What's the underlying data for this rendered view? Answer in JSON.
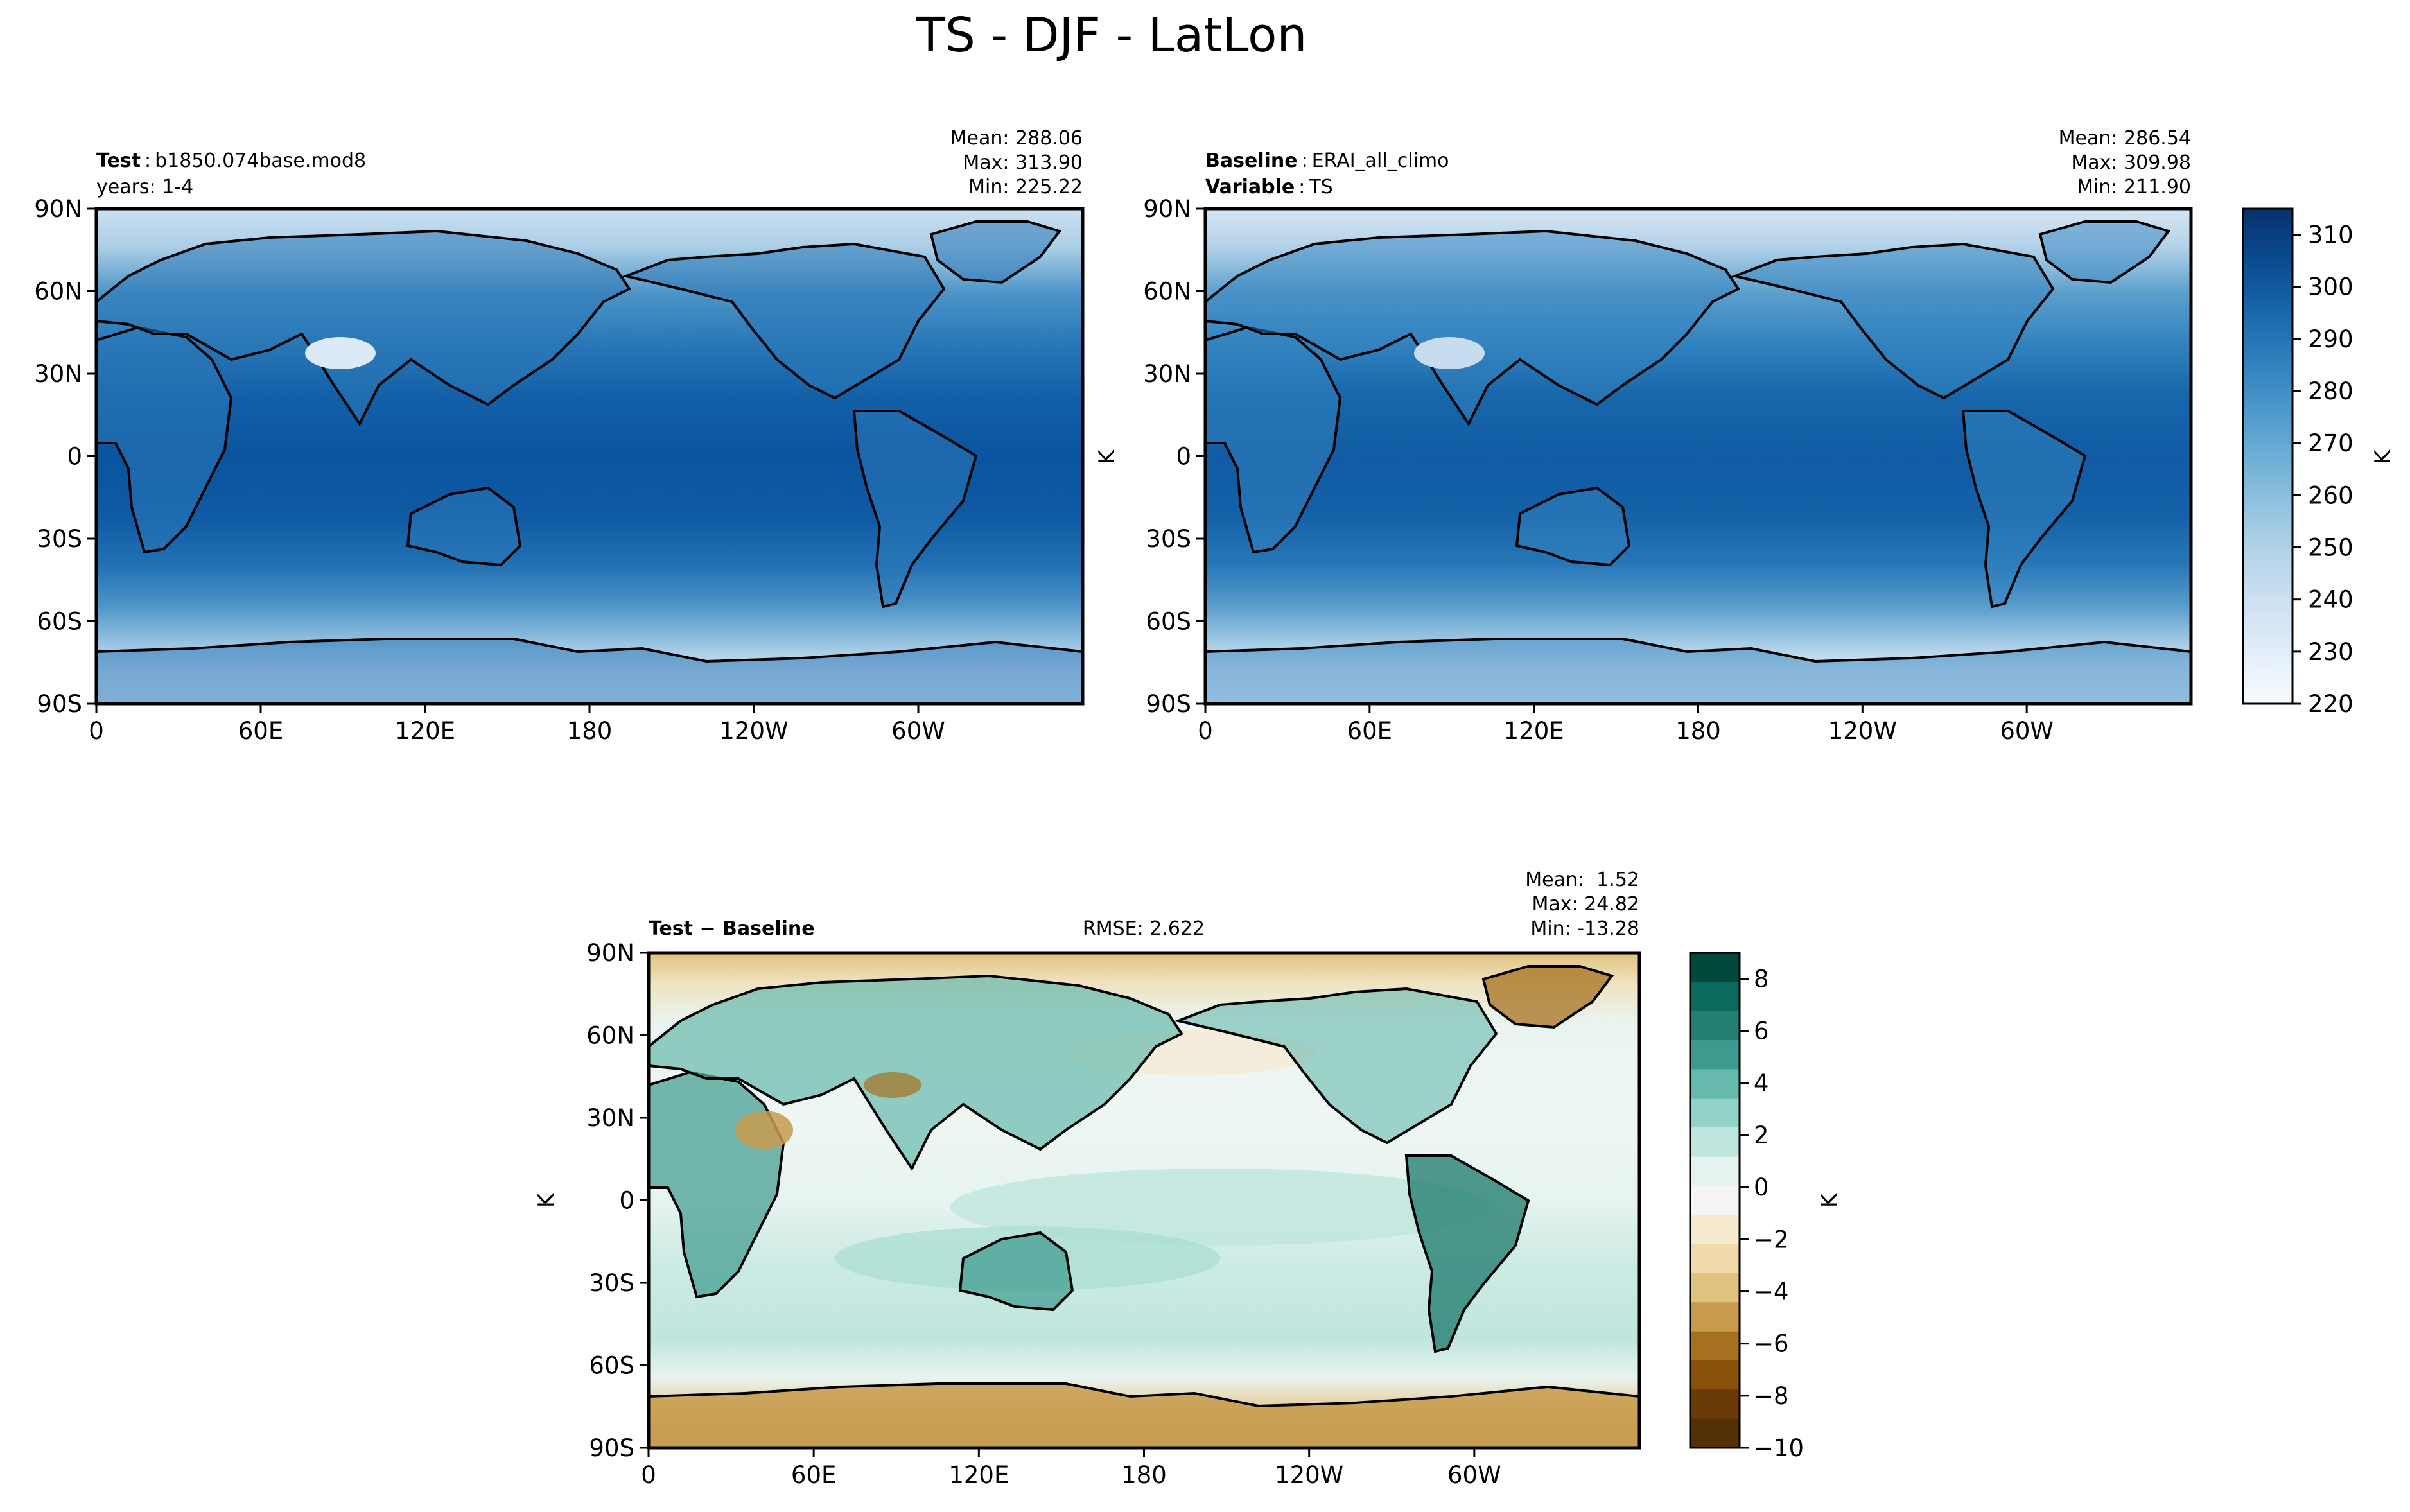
{
  "figure": {
    "title": "TS - DJF - LatLon"
  },
  "chart_data": [
    {
      "type": "heatmap",
      "panel": "test",
      "label_left_bold": "Test",
      "label_left_value": "b1850.074base.mod8",
      "label_left_line2": "years: 1-4",
      "stats": [
        "Mean: 288.06",
        "Max: 313.90",
        "Min: 225.22"
      ],
      "stats_values": {
        "mean": 288.06,
        "max": 313.9,
        "min": 225.22
      },
      "x_ticks": [
        "0",
        "60E",
        "120E",
        "180",
        "120W",
        "60W"
      ],
      "x_tick_values": [
        0,
        60,
        120,
        180,
        240,
        300
      ],
      "y_ticks": [
        "90N",
        "60N",
        "30N",
        "0",
        "30S",
        "60S",
        "90S"
      ],
      "y_tick_values": [
        90,
        60,
        30,
        0,
        -30,
        -60,
        -90
      ],
      "xlim": [
        0,
        360
      ],
      "ylim": [
        -90,
        90
      ],
      "colormap": "Blues",
      "grid": false
    },
    {
      "type": "heatmap",
      "panel": "baseline",
      "label_left_bold": "Baseline",
      "label_left_value": "ERAI_all_climo",
      "label_left2_bold": "Variable",
      "label_left2_value": "TS",
      "ylabel": "K",
      "stats": [
        "Mean: 286.54",
        "Max: 309.98",
        "Min: 211.90"
      ],
      "stats_values": {
        "mean": 286.54,
        "max": 309.98,
        "min": 211.9
      },
      "x_ticks": [
        "0",
        "60E",
        "120E",
        "180",
        "120W",
        "60W"
      ],
      "y_ticks": [
        "90N",
        "60N",
        "30N",
        "0",
        "30S",
        "60S",
        "90S"
      ],
      "colorbar": {
        "label": "K",
        "ticks": [
          "220",
          "230",
          "240",
          "250",
          "260",
          "270",
          "280",
          "290",
          "300",
          "310"
        ],
        "tick_values": [
          220,
          230,
          240,
          250,
          260,
          270,
          280,
          290,
          300,
          310
        ],
        "range": [
          220,
          315
        ],
        "colors_low_to_high": [
          "#f7fbff",
          "#e3eef9",
          "#cfe1f2",
          "#b5d4e9",
          "#93c3df",
          "#6daed5",
          "#4b97c9",
          "#2f7ebc",
          "#1864aa",
          "#0a4a90",
          "#08306b"
        ]
      }
    },
    {
      "type": "heatmap",
      "panel": "difference",
      "label_left": "Test − Baseline",
      "label_center": "RMSE: 2.622",
      "rmse": 2.622,
      "ylabel": "K",
      "stats": [
        "Mean:  1.52",
        "Max: 24.82",
        "Min: -13.28"
      ],
      "stats_values": {
        "mean": 1.52,
        "max": 24.82,
        "min": -13.28
      },
      "x_ticks": [
        "0",
        "60E",
        "120E",
        "180",
        "120W",
        "60W"
      ],
      "y_ticks": [
        "90N",
        "60N",
        "30N",
        "0",
        "30S",
        "60S",
        "90S"
      ],
      "colormap": "BrBG",
      "colorbar": {
        "label": "K",
        "ticks": [
          "8",
          "6",
          "4",
          "2",
          "0",
          "−2",
          "−4",
          "−6",
          "−8",
          "−10"
        ],
        "tick_values": [
          8,
          6,
          4,
          2,
          0,
          -2,
          -4,
          -6,
          -8,
          -10
        ],
        "range": [
          -10,
          9
        ],
        "colors_high_to_low": [
          "#00493b",
          "#0b6a5e",
          "#267f73",
          "#3d9a8e",
          "#66b9ad",
          "#92d3c8",
          "#bfe6de",
          "#e4f3ef",
          "#f5f5f5",
          "#f6ead0",
          "#f0d9aa",
          "#dfc27d",
          "#c79a4c",
          "#a6711f",
          "#8a510a",
          "#6a3b07",
          "#543005"
        ]
      }
    }
  ],
  "colors": {
    "ocean_test_equator": "#0d57a1",
    "ocean_baseline_equator": "#1361a8",
    "polar_light": "#d9e7f5",
    "diff_positive": "#3d9a8e",
    "diff_neutral": "#f1f7f4",
    "diff_negative": "#c79a4c"
  }
}
